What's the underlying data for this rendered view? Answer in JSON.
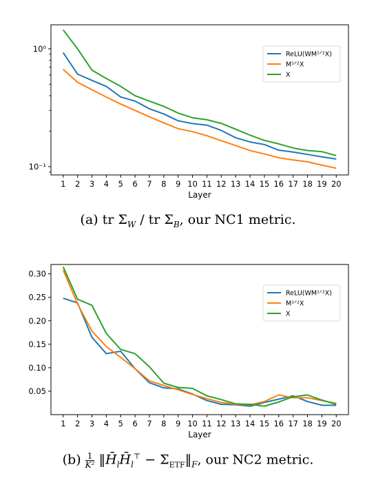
{
  "chart_data": [
    {
      "type": "line",
      "yscale": "log",
      "x": [
        1,
        2,
        3,
        4,
        5,
        6,
        7,
        8,
        9,
        10,
        11,
        12,
        13,
        14,
        15,
        16,
        17,
        18,
        19,
        20
      ],
      "xlabel": "Layer",
      "ylim": [
        0.085,
        1.6
      ],
      "yticks": [
        {
          "value": 0.1,
          "label": "10⁻¹"
        },
        {
          "value": 1.0,
          "label": "10⁰"
        }
      ],
      "legend_position": "upper-right",
      "series": [
        {
          "name": "ReLU(WM¹ᐟ²X)",
          "color": "#1f77b4",
          "values": [
            0.93,
            0.61,
            0.54,
            0.48,
            0.39,
            0.36,
            0.31,
            0.28,
            0.245,
            0.232,
            0.225,
            0.203,
            0.176,
            0.162,
            0.154,
            0.138,
            0.133,
            0.127,
            0.121,
            0.116
          ]
        },
        {
          "name": "M¹ᐟ²X",
          "color": "#ff7f0e",
          "values": [
            0.67,
            0.52,
            0.45,
            0.39,
            0.34,
            0.3,
            0.265,
            0.235,
            0.21,
            0.198,
            0.183,
            0.166,
            0.151,
            0.137,
            0.128,
            0.119,
            0.114,
            0.11,
            0.103,
            0.097
          ]
        },
        {
          "name": "X",
          "color": "#2ca02c",
          "values": [
            1.45,
            1.0,
            0.66,
            0.56,
            0.48,
            0.4,
            0.36,
            0.325,
            0.285,
            0.26,
            0.25,
            0.233,
            0.208,
            0.185,
            0.167,
            0.156,
            0.144,
            0.137,
            0.134,
            0.124
          ]
        }
      ]
    },
    {
      "type": "line",
      "x": [
        1,
        2,
        3,
        4,
        5,
        6,
        7,
        8,
        9,
        10,
        11,
        12,
        13,
        14,
        15,
        16,
        17,
        18,
        19,
        20
      ],
      "xlabel": "Layer",
      "ylim": [
        0.0,
        0.32
      ],
      "yticks": [
        {
          "value": 0.05,
          "label": "0.05"
        },
        {
          "value": 0.1,
          "label": "0.10"
        },
        {
          "value": 0.15,
          "label": "0.15"
        },
        {
          "value": 0.2,
          "label": "0.20"
        },
        {
          "value": 0.25,
          "label": "0.25"
        },
        {
          "value": 0.3,
          "label": "0.30"
        }
      ],
      "legend_position": "upper-right",
      "series": [
        {
          "name": "ReLU(WM¹ᐟ²X)",
          "color": "#1f77b4",
          "values": [
            0.248,
            0.238,
            0.165,
            0.13,
            0.135,
            0.098,
            0.068,
            0.057,
            0.055,
            0.044,
            0.03,
            0.022,
            0.021,
            0.018,
            0.026,
            0.033,
            0.04,
            0.028,
            0.02,
            0.02
          ]
        },
        {
          "name": "M¹ᐟ²X",
          "color": "#ff7f0e",
          "values": [
            0.308,
            0.236,
            0.178,
            0.145,
            0.122,
            0.098,
            0.072,
            0.062,
            0.053,
            0.043,
            0.034,
            0.026,
            0.022,
            0.021,
            0.028,
            0.042,
            0.036,
            0.036,
            0.03,
            0.024
          ]
        },
        {
          "name": "X",
          "color": "#2ca02c",
          "values": [
            0.315,
            0.246,
            0.233,
            0.173,
            0.139,
            0.13,
            0.102,
            0.067,
            0.058,
            0.056,
            0.04,
            0.032,
            0.023,
            0.022,
            0.018,
            0.027,
            0.038,
            0.042,
            0.031,
            0.022
          ]
        }
      ]
    }
  ],
  "captions": {
    "a_prefix": "(a) tr Σ",
    "a_sub1": "W",
    "a_mid": " / tr Σ",
    "a_sub2": "B",
    "a_suffix": ", our NC1 metric.",
    "b_prefix": "(b) ",
    "b_frac_num": "1",
    "b_frac_den": "K²",
    "b_norm": " ‖H̄",
    "b_sub_l1": "l",
    "b_h2": "H̄",
    "b_sub_l2": "l",
    "b_sup_t": "⊤",
    "b_minus": " − Σ",
    "b_sub_etf": "ETF",
    "b_close": "‖",
    "b_sub_f": "F",
    "b_suffix": ", our NC2 metric."
  }
}
